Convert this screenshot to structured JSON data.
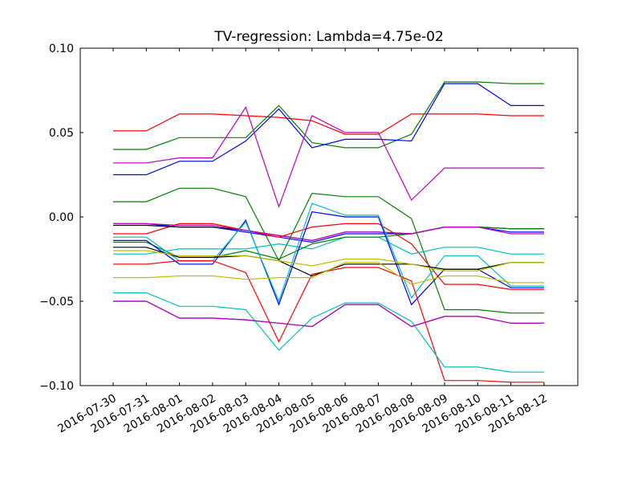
{
  "chart_data": {
    "type": "line",
    "title": "TV-regression: Lambda=4.75e-02",
    "xlabel": "",
    "ylabel": "",
    "ylim": [
      -0.1,
      0.1
    ],
    "yticks": [
      "0.10",
      "0.05",
      "0.00",
      "−0.05",
      "−0.10"
    ],
    "yticks_values": [
      0.1,
      0.05,
      0.0,
      -0.05,
      -0.1
    ],
    "categories": [
      "2016-07-30",
      "2016-07-31",
      "2016-08-01",
      "2016-08-02",
      "2016-08-03",
      "2016-08-04",
      "2016-08-05",
      "2016-08-06",
      "2016-08-07",
      "2016-08-08",
      "2016-08-09",
      "2016-08-10",
      "2016-08-11",
      "2016-08-12"
    ],
    "grid": false,
    "legend": "none",
    "series": [
      {
        "color": "#ff0000",
        "values": [
          0.051,
          0.051,
          0.061,
          0.061,
          0.06,
          0.059,
          0.057,
          0.049,
          0.049,
          0.061,
          0.061,
          0.061,
          0.06,
          0.06
        ]
      },
      {
        "color": "#008000",
        "values": [
          0.04,
          0.04,
          0.047,
          0.047,
          0.047,
          0.066,
          0.044,
          0.041,
          0.041,
          0.049,
          0.08,
          0.08,
          0.079,
          0.079
        ]
      },
      {
        "color": "#0000ff",
        "values": [
          0.025,
          0.025,
          0.033,
          0.033,
          0.045,
          0.064,
          0.041,
          0.046,
          0.046,
          0.045,
          0.079,
          0.079,
          0.066,
          0.066
        ]
      },
      {
        "color": "#bf00bf",
        "values": [
          0.032,
          0.032,
          0.035,
          0.035,
          0.065,
          0.006,
          0.06,
          0.05,
          0.05,
          0.01,
          0.029,
          0.029,
          0.029,
          0.029
        ]
      },
      {
        "color": "#008000",
        "values": [
          0.009,
          0.009,
          0.017,
          0.017,
          0.012,
          -0.026,
          0.014,
          0.012,
          0.012,
          -0.001,
          -0.055,
          -0.055,
          -0.057,
          -0.057
        ]
      },
      {
        "color": "#0000ff",
        "values": [
          -0.004,
          -0.004,
          -0.006,
          -0.006,
          -0.009,
          -0.012,
          -0.015,
          -0.01,
          -0.01,
          -0.01,
          -0.006,
          -0.006,
          -0.009,
          -0.009
        ]
      },
      {
        "color": "#ff0000",
        "values": [
          -0.01,
          -0.01,
          -0.004,
          -0.004,
          -0.008,
          -0.012,
          -0.006,
          -0.004,
          -0.004,
          -0.016,
          -0.04,
          -0.04,
          -0.043,
          -0.043
        ]
      },
      {
        "color": "#000000",
        "values": [
          -0.005,
          -0.005,
          -0.006,
          -0.006,
          -0.008,
          -0.011,
          -0.014,
          -0.009,
          -0.009,
          -0.01,
          -0.006,
          -0.006,
          -0.007,
          -0.007
        ]
      },
      {
        "color": "#00bfbf",
        "values": [
          -0.022,
          -0.022,
          -0.019,
          -0.019,
          -0.019,
          -0.016,
          -0.019,
          -0.012,
          -0.012,
          -0.022,
          -0.018,
          -0.018,
          -0.022,
          -0.022
        ]
      },
      {
        "color": "#008000",
        "values": [
          -0.015,
          -0.015,
          -0.024,
          -0.024,
          -0.02,
          -0.025,
          -0.016,
          -0.012,
          -0.012,
          -0.01,
          -0.006,
          -0.006,
          -0.007,
          -0.007
        ]
      },
      {
        "color": "#bf00bf",
        "values": [
          -0.004,
          -0.004,
          -0.005,
          -0.005,
          -0.008,
          -0.011,
          -0.014,
          -0.009,
          -0.009,
          -0.01,
          -0.006,
          -0.006,
          -0.01,
          -0.01
        ]
      },
      {
        "color": "#0000ff",
        "values": [
          -0.014,
          -0.014,
          -0.028,
          -0.028,
          -0.002,
          -0.052,
          0.003,
          0.0,
          0.0,
          -0.052,
          -0.031,
          -0.031,
          -0.042,
          -0.042
        ]
      },
      {
        "color": "#00bfbf",
        "values": [
          -0.012,
          -0.012,
          -0.026,
          -0.026,
          -0.003,
          -0.05,
          0.008,
          0.001,
          0.001,
          -0.048,
          -0.023,
          -0.023,
          -0.041,
          -0.041
        ]
      },
      {
        "color": "#ff0000",
        "values": [
          -0.028,
          -0.028,
          -0.026,
          -0.026,
          -0.033,
          -0.074,
          -0.034,
          -0.03,
          -0.03,
          -0.038,
          -0.097,
          -0.097,
          -0.098,
          -0.098
        ]
      },
      {
        "color": "#000000",
        "values": [
          -0.018,
          -0.018,
          -0.024,
          -0.024,
          -0.023,
          -0.026,
          -0.035,
          -0.028,
          -0.028,
          -0.028,
          -0.031,
          -0.031,
          -0.027,
          -0.027
        ]
      },
      {
        "color": "#bfbf00",
        "values": [
          -0.02,
          -0.02,
          -0.023,
          -0.023,
          -0.023,
          -0.026,
          -0.029,
          -0.025,
          -0.025,
          -0.028,
          -0.032,
          -0.032,
          -0.027,
          -0.027
        ]
      },
      {
        "color": "#bfbf00",
        "values": [
          -0.036,
          -0.036,
          -0.035,
          -0.035,
          -0.037,
          -0.036,
          -0.036,
          -0.027,
          -0.027,
          -0.04,
          -0.035,
          -0.035,
          -0.039,
          -0.039
        ]
      },
      {
        "color": "#00bfbf",
        "values": [
          -0.045,
          -0.045,
          -0.053,
          -0.053,
          -0.055,
          -0.079,
          -0.06,
          -0.051,
          -0.051,
          -0.062,
          -0.089,
          -0.089,
          -0.092,
          -0.092
        ]
      },
      {
        "color": "#0000ff",
        "values": [
          -0.05,
          -0.05,
          -0.06,
          -0.06,
          -0.061,
          -0.063,
          -0.065,
          -0.052,
          -0.052,
          -0.065,
          -0.059,
          -0.059,
          -0.063,
          -0.063
        ]
      },
      {
        "color": "#bf00bf",
        "values": [
          -0.05,
          -0.05,
          -0.06,
          -0.06,
          -0.061,
          -0.063,
          -0.065,
          -0.052,
          -0.052,
          -0.065,
          -0.059,
          -0.059,
          -0.063,
          -0.063
        ]
      }
    ]
  }
}
